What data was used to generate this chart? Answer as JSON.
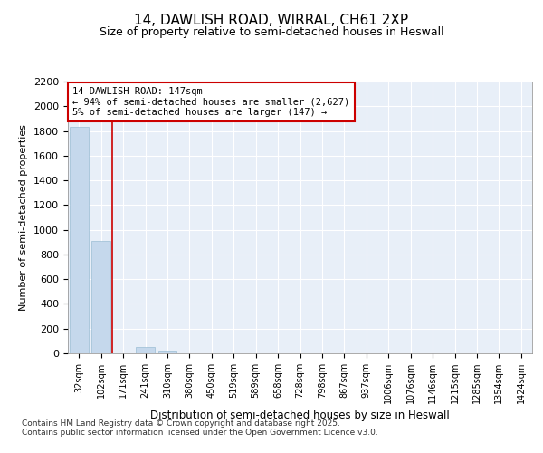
{
  "title1": "14, DAWLISH ROAD, WIRRAL, CH61 2XP",
  "title2": "Size of property relative to semi-detached houses in Heswall",
  "xlabel": "Distribution of semi-detached houses by size in Heswall",
  "ylabel": "Number of semi-detached properties",
  "categories": [
    "32sqm",
    "102sqm",
    "171sqm",
    "241sqm",
    "310sqm",
    "380sqm",
    "450sqm",
    "519sqm",
    "589sqm",
    "658sqm",
    "728sqm",
    "798sqm",
    "867sqm",
    "937sqm",
    "1006sqm",
    "1076sqm",
    "1146sqm",
    "1215sqm",
    "1285sqm",
    "1354sqm",
    "1424sqm"
  ],
  "values": [
    1830,
    910,
    0,
    50,
    20,
    3,
    1,
    0,
    0,
    0,
    0,
    0,
    0,
    0,
    0,
    0,
    0,
    0,
    0,
    0,
    0
  ],
  "bar_color": "#c5d8ec",
  "bar_edge_color": "#9bbdd4",
  "background_color": "#e8eff8",
  "grid_color": "#ffffff",
  "red_line_x": 2.0,
  "annotation_line1": "14 DAWLISH ROAD: 147sqm",
  "annotation_line2": "← 94% of semi-detached houses are smaller (2,627)",
  "annotation_line3": "5% of semi-detached houses are larger (147) →",
  "annotation_box_color": "#ffffff",
  "annotation_border_color": "#cc0000",
  "ylim": [
    0,
    2200
  ],
  "yticks": [
    0,
    200,
    400,
    600,
    800,
    1000,
    1200,
    1400,
    1600,
    1800,
    2000,
    2200
  ],
  "footnote1": "Contains HM Land Registry data © Crown copyright and database right 2025.",
  "footnote2": "Contains public sector information licensed under the Open Government Licence v3.0."
}
